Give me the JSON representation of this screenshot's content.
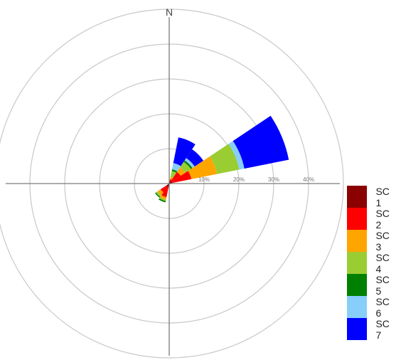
{
  "chart_data": {
    "type": "wind-rose",
    "north_label": "N",
    "radial_ticks": [
      {
        "value": 10,
        "label": "10%"
      },
      {
        "value": 20,
        "label": "20%"
      },
      {
        "value": 30,
        "label": "30%"
      },
      {
        "value": 40,
        "label": "40%"
      }
    ],
    "radial_max": 50,
    "sector_width_deg": 22.5,
    "legend_position": "bottom-right",
    "classes": [
      {
        "name": "SC 1",
        "color": "#8B0000"
      },
      {
        "name": "SC 2",
        "color": "#FF0000"
      },
      {
        "name": "SC 3",
        "color": "#FFA500"
      },
      {
        "name": "SC 4",
        "color": "#9ACD32"
      },
      {
        "name": "SC 5",
        "color": "#008000"
      },
      {
        "name": "SC 6",
        "color": "#87CEFA"
      },
      {
        "name": "SC 7",
        "color": "#0000FF"
      }
    ],
    "sectors": [
      {
        "direction_deg": 22.5,
        "values": [
          0.5,
          0.8,
          0.6,
          1.8,
          0.5,
          1.8,
          7.5
        ]
      },
      {
        "direction_deg": 45,
        "values": [
          1.0,
          3.0,
          1.5,
          2.0,
          0.5,
          0.8,
          3.0
        ]
      },
      {
        "direction_deg": 67.5,
        "values": [
          1.0,
          5.5,
          7.5,
          6.5,
          0.0,
          1.5,
          13.0
        ]
      },
      {
        "direction_deg": 202.5,
        "values": [
          1.2,
          2.8,
          0.7,
          0.4,
          0.4,
          0.0,
          0.0
        ]
      },
      {
        "direction_deg": 225,
        "values": [
          1.0,
          2.0,
          1.0,
          0.6,
          0.3,
          0.0,
          0.0
        ]
      }
    ]
  }
}
